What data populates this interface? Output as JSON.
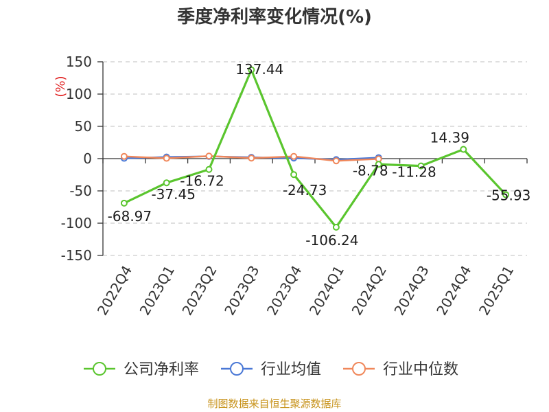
{
  "chart_data": {
    "type": "line",
    "title": "季度净利率变化情况(%)",
    "ylabel": "(%)",
    "xlabel": "",
    "ylim": [
      -150,
      150
    ],
    "yticks": [
      150,
      100,
      50,
      0,
      -50,
      -100,
      -150
    ],
    "categories": [
      "2022Q4",
      "2023Q1",
      "2023Q2",
      "2023Q3",
      "2023Q4",
      "2024Q1",
      "2024Q2",
      "2024Q3",
      "2024Q4",
      "2025Q1"
    ],
    "series": [
      {
        "name": "公司净利率",
        "color": "#5ac52e",
        "values": [
          -68.97,
          -37.45,
          -16.72,
          137.44,
          -24.73,
          -106.24,
          -8.78,
          -11.28,
          14.39,
          -55.93
        ],
        "labels": [
          "-68.97",
          "-37.45",
          "-16.72",
          "137.44",
          "-24.73",
          "-106.24",
          "-8.78",
          "-11.28",
          "14.39",
          "-55.93"
        ]
      },
      {
        "name": "行业均值",
        "color": "#4a78d6",
        "values": [
          0.5,
          2.5,
          3.5,
          2.0,
          0.8,
          -1.5,
          1.5,
          null,
          null,
          null
        ]
      },
      {
        "name": "行业中位数",
        "color": "#f0875a",
        "values": [
          3.5,
          0.5,
          4.0,
          0.8,
          3.5,
          -3.5,
          -0.5,
          null,
          null,
          null
        ]
      }
    ],
    "grid": "horizontal-dashed",
    "legend_position": "bottom"
  },
  "source": "制图数据来自恒生聚源数据库"
}
